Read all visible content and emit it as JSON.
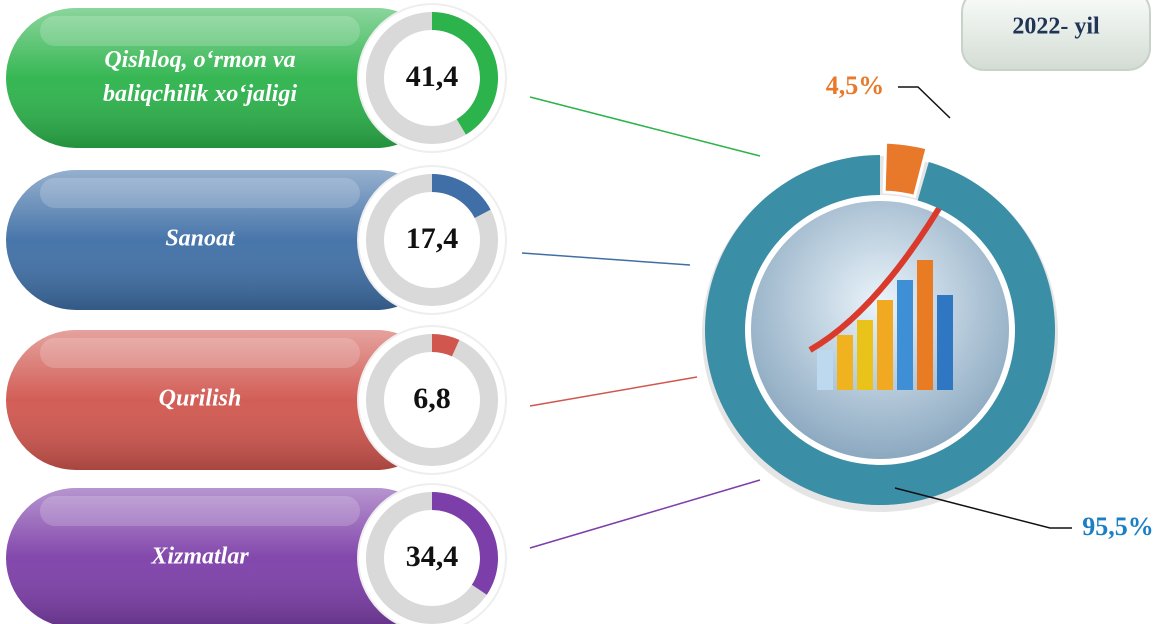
{
  "chart_data": [
    {
      "type": "gauge",
      "categories": [
        "Qishloq, o‘rmon va baliqchilik xo‘jaligi",
        "Sanoat",
        "Qurilish",
        "Xizmatlar"
      ],
      "values": [
        41.4,
        17.4,
        6.8,
        34.4
      ],
      "value_labels": [
        "41,4",
        "17,4",
        "6,8",
        "34,4"
      ],
      "colors": [
        "#2cb34b",
        "#3f6fa6",
        "#d0564e",
        "#7c3ea8"
      ]
    },
    {
      "type": "donut",
      "title": "2022- yil",
      "values": [
        4.5,
        95.5
      ],
      "value_labels": [
        "4,5%",
        "95,5%"
      ],
      "colors": [
        "#e8792a",
        "#3a8ea6"
      ]
    }
  ]
}
